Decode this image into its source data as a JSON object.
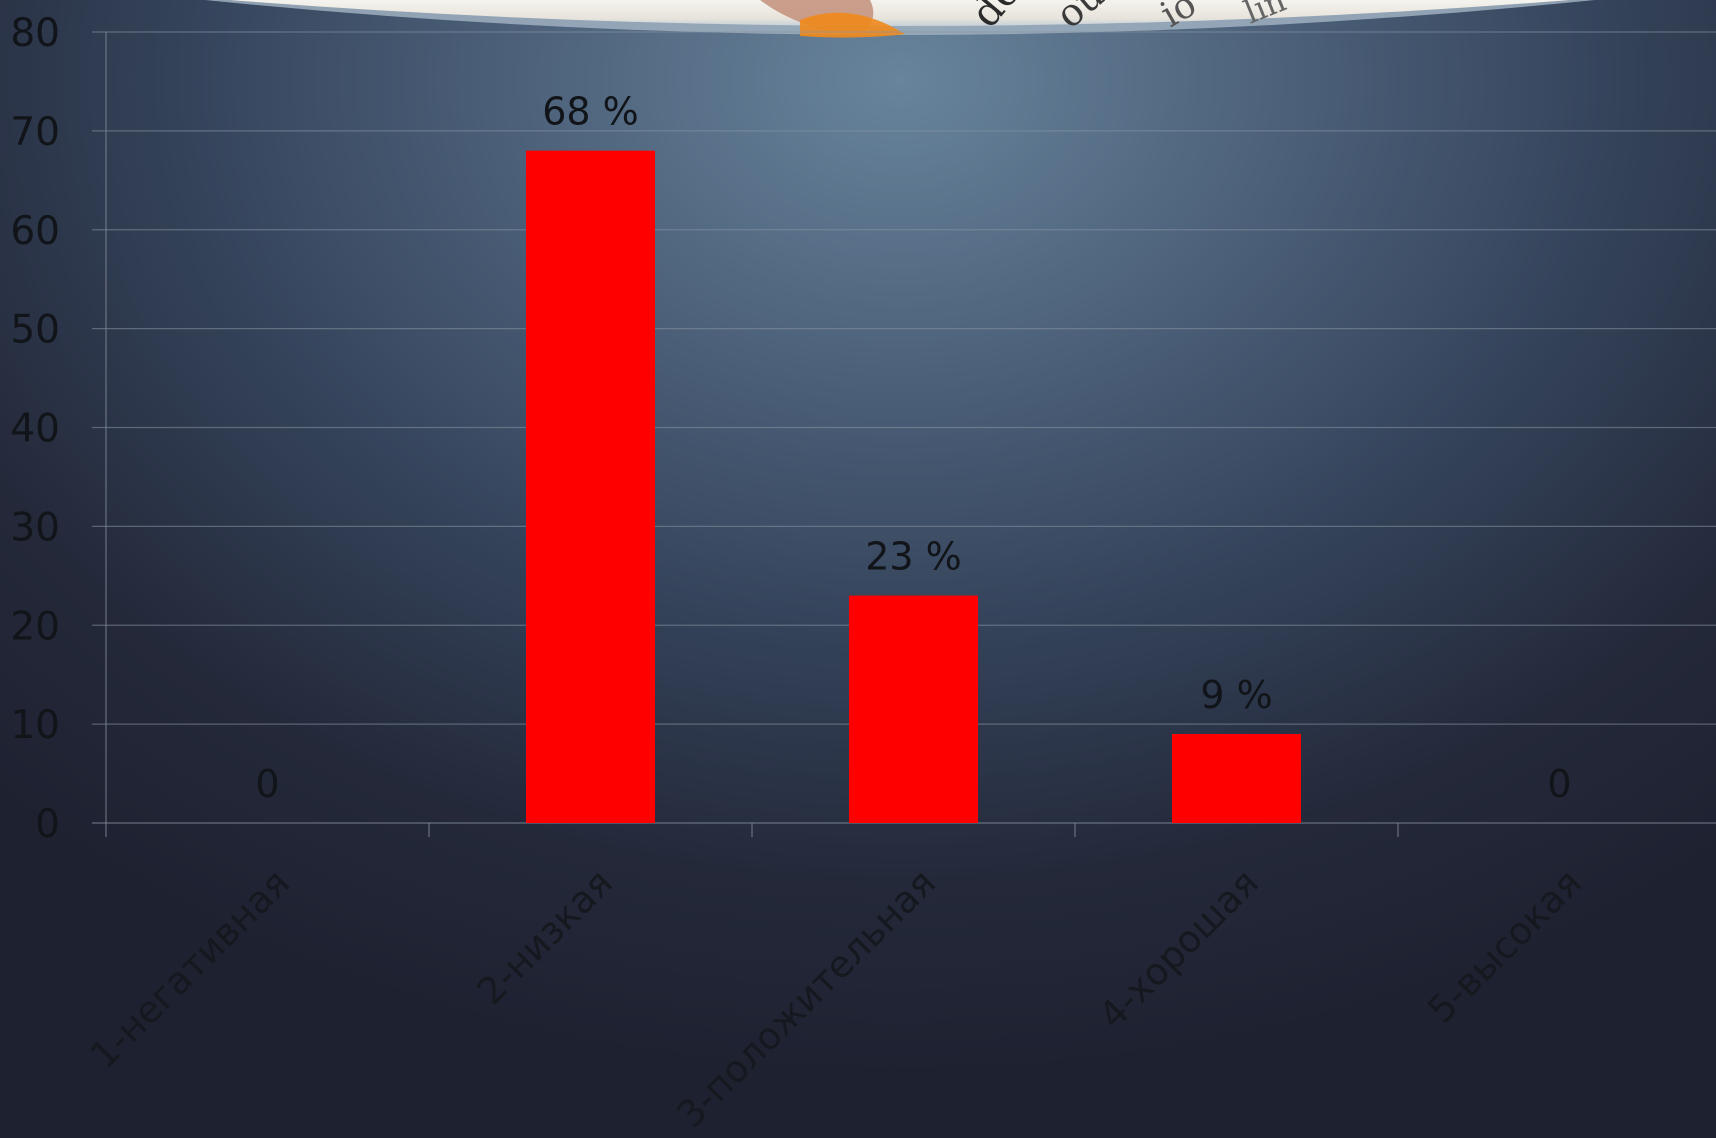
{
  "chart_data": {
    "type": "bar",
    "categories": [
      "1-негативная",
      "2-низкая",
      "3-положительная",
      "4-хорошая",
      "5-высокая"
    ],
    "values": [
      0,
      68,
      23,
      9,
      0
    ],
    "data_labels": [
      "0",
      "68 %",
      "23 %",
      "9 %",
      "0"
    ],
    "title": "",
    "xlabel": "",
    "ylabel": "",
    "ylim": [
      0,
      80
    ],
    "yticks": [
      "0",
      "10",
      "20",
      "30",
      "40",
      "50",
      "60",
      "70",
      "80"
    ],
    "grid": true,
    "legend": "none",
    "bar_color": "#ff0000"
  },
  "decoration": {
    "top_image": "photo-of-printed-page-icon"
  }
}
